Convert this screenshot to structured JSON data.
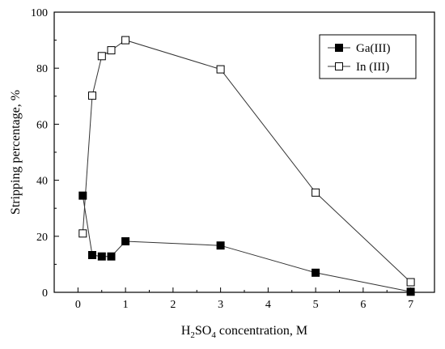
{
  "chart_data": {
    "type": "line",
    "xlabel": {
      "prefix": "H",
      "sub1": "2",
      "mid": "SO",
      "sub2": "4",
      "suffix": " concentration, M"
    },
    "ylabel": "Stripping percentage, %",
    "xlim": [
      -0.5,
      7.5
    ],
    "ylim": [
      0,
      100
    ],
    "xticks": [
      0,
      1,
      2,
      3,
      4,
      5,
      6,
      7
    ],
    "yticks": [
      0,
      20,
      40,
      60,
      80,
      100
    ],
    "legend_position": "top-right",
    "series": [
      {
        "name": "Ga(III)",
        "marker": "filled-square",
        "x": [
          0.1,
          0.3,
          0.5,
          0.7,
          1,
          3,
          5,
          7
        ],
        "y": [
          34.5,
          13.3,
          12.8,
          12.8,
          18.2,
          16.7,
          7.0,
          0.2
        ]
      },
      {
        "name": "In (III)",
        "marker": "open-square",
        "x": [
          0.1,
          0.3,
          0.5,
          0.7,
          1,
          3,
          5,
          7
        ],
        "y": [
          21.0,
          70.2,
          84.3,
          86.4,
          90.0,
          79.6,
          35.6,
          3.6
        ]
      }
    ]
  },
  "colors": {
    "line": "#333333",
    "marker_stroke": "#000000",
    "marker_fill_filled": "#000000",
    "marker_fill_open": "#ffffff"
  }
}
